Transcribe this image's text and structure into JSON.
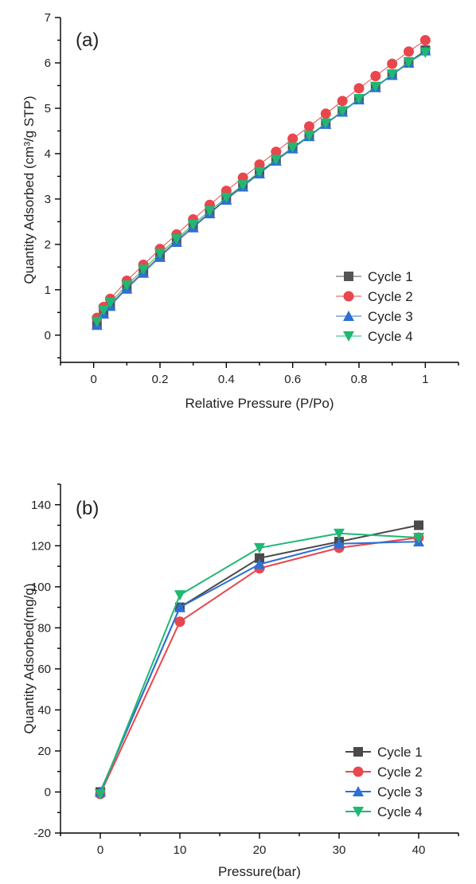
{
  "chart_data": [
    {
      "type": "line",
      "panel_label": "(a)",
      "xlabel": "Relative Pressure (P/Po)",
      "ylabel": "Quantity Adsorbed (cm³/g STP)",
      "xlim": [
        -0.1,
        1.1
      ],
      "ylim": [
        -0.6,
        7
      ],
      "xticks": [
        0,
        0.2,
        0.4,
        0.6,
        0.8,
        1
      ],
      "xtick_labels": [
        "0",
        "0.2",
        "0.4",
        "0.6",
        "0.8",
        "1"
      ],
      "yticks": [
        0,
        1,
        2,
        3,
        4,
        5,
        6,
        7
      ],
      "ytick_labels": [
        "0",
        "1",
        "2",
        "3",
        "4",
        "5",
        "6",
        "7"
      ],
      "legend_position": "bottom-right",
      "x": [
        0.01,
        0.03,
        0.05,
        0.1,
        0.15,
        0.2,
        0.25,
        0.3,
        0.35,
        0.4,
        0.45,
        0.5,
        0.55,
        0.6,
        0.65,
        0.7,
        0.75,
        0.8,
        0.85,
        0.9,
        0.95,
        1.0
      ],
      "series": [
        {
          "name": "Cycle 1",
          "color": "#555555",
          "marker": "square",
          "values": [
            0.25,
            0.5,
            0.67,
            1.05,
            1.4,
            1.75,
            2.08,
            2.4,
            2.7,
            3.0,
            3.3,
            3.58,
            3.85,
            4.12,
            4.4,
            4.67,
            4.93,
            5.2,
            5.47,
            5.75,
            6.02,
            6.28
          ]
        },
        {
          "name": "Cycle 2",
          "color": "#e8474d",
          "marker": "circle",
          "values": [
            0.38,
            0.62,
            0.8,
            1.2,
            1.55,
            1.9,
            2.22,
            2.55,
            2.87,
            3.18,
            3.47,
            3.76,
            4.04,
            4.33,
            4.6,
            4.88,
            5.16,
            5.44,
            5.71,
            5.98,
            6.25,
            6.5
          ]
        },
        {
          "name": "Cycle 3",
          "color": "#2e6fd4",
          "marker": "triangle-up",
          "values": [
            0.22,
            0.47,
            0.64,
            1.02,
            1.37,
            1.72,
            2.05,
            2.37,
            2.68,
            2.98,
            3.27,
            3.56,
            3.84,
            4.11,
            4.38,
            4.65,
            4.92,
            5.19,
            5.46,
            5.73,
            6.0,
            6.27
          ]
        },
        {
          "name": "Cycle 4",
          "color": "#1fb873",
          "marker": "triangle-down",
          "values": [
            0.3,
            0.55,
            0.72,
            1.1,
            1.45,
            1.8,
            2.12,
            2.44,
            2.74,
            3.03,
            3.31,
            3.6,
            3.87,
            4.14,
            4.4,
            4.67,
            4.94,
            5.21,
            5.48,
            5.75,
            6.01,
            6.23
          ]
        }
      ]
    },
    {
      "type": "line",
      "panel_label": "(b)",
      "xlabel": "Pressure(bar)",
      "ylabel": "Quantity Adsorbed(mg/g)",
      "xlim": [
        -5,
        45
      ],
      "ylim": [
        -20,
        150
      ],
      "xticks": [
        0,
        10,
        20,
        30,
        40
      ],
      "xtick_labels": [
        "0",
        "10",
        "20",
        "30",
        "40"
      ],
      "yticks": [
        -20,
        0,
        20,
        40,
        60,
        80,
        100,
        120,
        140
      ],
      "ytick_labels": [
        "-20",
        "0",
        "20",
        "40",
        "60",
        "80",
        "100",
        "120",
        "140"
      ],
      "legend_position": "bottom-right",
      "x": [
        0,
        10,
        20,
        30,
        40
      ],
      "series": [
        {
          "name": "Cycle 1",
          "color": "#4a4a4a",
          "marker": "square",
          "values": [
            0,
            90,
            114,
            122,
            130
          ]
        },
        {
          "name": "Cycle 2",
          "color": "#e8474d",
          "marker": "circle",
          "values": [
            -1,
            83,
            109,
            119,
            124
          ]
        },
        {
          "name": "Cycle 3",
          "color": "#2e6fd4",
          "marker": "triangle-up",
          "values": [
            0,
            90,
            111,
            121,
            122
          ]
        },
        {
          "name": "Cycle 4",
          "color": "#1fb873",
          "marker": "triangle-down",
          "values": [
            -1,
            96,
            119,
            126,
            124
          ]
        }
      ]
    }
  ]
}
